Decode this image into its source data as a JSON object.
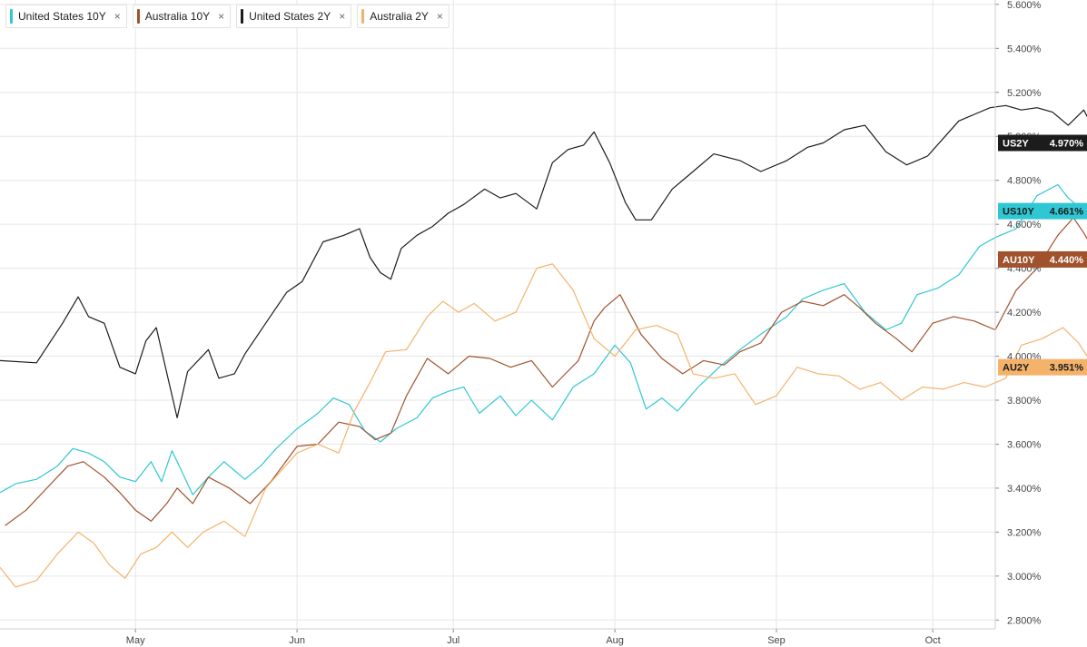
{
  "legend": [
    {
      "label": "United States 10Y",
      "color": "#2fc7d4"
    },
    {
      "label": "Australia 10Y",
      "color": "#a0522d"
    },
    {
      "label": "United States 2Y",
      "color": "#1c1c1c"
    },
    {
      "label": "Australia 2Y",
      "color": "#f5b26b"
    }
  ],
  "close_glyph": "×",
  "chart_data": {
    "type": "line",
    "x_tick_labels": [
      "May",
      "Jun",
      "Jul",
      "Aug",
      "Sep",
      "Oct"
    ],
    "y_tick_labels": [
      "2.800%",
      "3.000%",
      "3.200%",
      "3.400%",
      "3.600%",
      "3.800%",
      "4.000%",
      "4.200%",
      "4.400%",
      "4.600%",
      "4.800%",
      "5.000%",
      "5.200%",
      "5.400%",
      "5.600%"
    ],
    "ylim": [
      2.76,
      5.62
    ],
    "grid": true,
    "x_range": [
      "Apr 05",
      "Oct 13"
    ],
    "series": [
      {
        "name": "United States 2Y",
        "end_label": "US2Y",
        "end_value": "4.970%",
        "color": "#1c1c1c",
        "text_color": "#ffffff",
        "points": [
          [
            "Apr 05",
            3.98
          ],
          [
            "Apr 12",
            3.97
          ],
          [
            "Apr 17",
            4.15
          ],
          [
            "Apr 20",
            4.27
          ],
          [
            "Apr 22",
            4.18
          ],
          [
            "Apr 25",
            4.15
          ],
          [
            "Apr 28",
            3.95
          ],
          [
            "May 01",
            3.92
          ],
          [
            "May 03",
            4.07
          ],
          [
            "May 05",
            4.13
          ],
          [
            "May 09",
            3.72
          ],
          [
            "May 11",
            3.93
          ],
          [
            "May 15",
            4.03
          ],
          [
            "May 17",
            3.9
          ],
          [
            "May 20",
            3.92
          ],
          [
            "May 22",
            4.01
          ],
          [
            "May 26",
            4.15
          ],
          [
            "May 30",
            4.29
          ],
          [
            "Jun 02",
            4.34
          ],
          [
            "Jun 06",
            4.52
          ],
          [
            "Jun 10",
            4.55
          ],
          [
            "Jun 13",
            4.58
          ],
          [
            "Jun 15",
            4.45
          ],
          [
            "Jun 17",
            4.38
          ],
          [
            "Jun 19",
            4.35
          ],
          [
            "Jun 21",
            4.49
          ],
          [
            "Jun 24",
            4.55
          ],
          [
            "Jun 27",
            4.59
          ],
          [
            "Jun 30",
            4.65
          ],
          [
            "Jul 03",
            4.69
          ],
          [
            "Jul 07",
            4.76
          ],
          [
            "Jul 10",
            4.72
          ],
          [
            "Jul 13",
            4.74
          ],
          [
            "Jul 17",
            4.67
          ],
          [
            "Jul 20",
            4.88
          ],
          [
            "Jul 23",
            4.94
          ],
          [
            "Jul 26",
            4.96
          ],
          [
            "Jul 28",
            5.02
          ],
          [
            "Jul 31",
            4.88
          ],
          [
            "Aug 03",
            4.7
          ],
          [
            "Aug 05",
            4.62
          ],
          [
            "Aug 08",
            4.62
          ],
          [
            "Aug 12",
            4.76
          ],
          [
            "Aug 16",
            4.84
          ],
          [
            "Aug 20",
            4.92
          ],
          [
            "Aug 25",
            4.89
          ],
          [
            "Aug 29",
            4.84
          ],
          [
            "Sep 03",
            4.89
          ],
          [
            "Sep 07",
            4.95
          ],
          [
            "Sep 10",
            4.97
          ],
          [
            "Sep 14",
            5.03
          ],
          [
            "Sep 18",
            5.05
          ],
          [
            "Sep 22",
            4.93
          ],
          [
            "Sep 26",
            4.87
          ],
          [
            "Sep 30",
            4.91
          ],
          [
            "Oct 03",
            4.99
          ],
          [
            "Oct 06",
            5.07
          ],
          [
            "Oct 09",
            5.1
          ],
          [
            "Oct 12",
            5.13
          ],
          [
            "Oct 15",
            5.14
          ],
          [
            "Oct 18",
            5.12
          ],
          [
            "Oct 21",
            5.13
          ],
          [
            "Oct 24",
            5.11
          ],
          [
            "Oct 27",
            5.05
          ],
          [
            "Oct 30",
            5.12
          ],
          [
            "Nov 02",
            4.98
          ],
          [
            "Nov 05",
            4.97
          ]
        ]
      },
      {
        "name": "United States 10Y",
        "end_label": "US10Y",
        "end_value": "4.661%",
        "color": "#2fc7d4",
        "text_color": "#1c1c1c",
        "points": [
          [
            "Apr 05",
            3.38
          ],
          [
            "Apr 08",
            3.42
          ],
          [
            "Apr 12",
            3.44
          ],
          [
            "Apr 16",
            3.5
          ],
          [
            "Apr 19",
            3.58
          ],
          [
            "Apr 22",
            3.56
          ],
          [
            "Apr 25",
            3.52
          ],
          [
            "Apr 28",
            3.45
          ],
          [
            "May 01",
            3.43
          ],
          [
            "May 04",
            3.52
          ],
          [
            "May 06",
            3.43
          ],
          [
            "May 08",
            3.57
          ],
          [
            "May 12",
            3.37
          ],
          [
            "May 15",
            3.45
          ],
          [
            "May 18",
            3.52
          ],
          [
            "May 22",
            3.44
          ],
          [
            "May 25",
            3.5
          ],
          [
            "May 28",
            3.58
          ],
          [
            "Jun 01",
            3.67
          ],
          [
            "Jun 05",
            3.74
          ],
          [
            "Jun 08",
            3.81
          ],
          [
            "Jun 11",
            3.78
          ],
          [
            "Jun 14",
            3.66
          ],
          [
            "Jun 17",
            3.61
          ],
          [
            "Jun 20",
            3.67
          ],
          [
            "Jun 24",
            3.72
          ],
          [
            "Jun 27",
            3.81
          ],
          [
            "Jun 30",
            3.84
          ],
          [
            "Jul 03",
            3.86
          ],
          [
            "Jul 06",
            3.74
          ],
          [
            "Jul 10",
            3.82
          ],
          [
            "Jul 13",
            3.73
          ],
          [
            "Jul 16",
            3.8
          ],
          [
            "Jul 20",
            3.71
          ],
          [
            "Jul 24",
            3.86
          ],
          [
            "Jul 28",
            3.92
          ],
          [
            "Aug 01",
            4.05
          ],
          [
            "Aug 04",
            3.97
          ],
          [
            "Aug 07",
            3.76
          ],
          [
            "Aug 10",
            3.81
          ],
          [
            "Aug 13",
            3.75
          ],
          [
            "Aug 17",
            3.86
          ],
          [
            "Aug 21",
            3.95
          ],
          [
            "Aug 25",
            4.03
          ],
          [
            "Aug 29",
            4.1
          ],
          [
            "Sep 03",
            4.18
          ],
          [
            "Sep 06",
            4.26
          ],
          [
            "Sep 10",
            4.3
          ],
          [
            "Sep 14",
            4.33
          ],
          [
            "Sep 18",
            4.2
          ],
          [
            "Sep 22",
            4.12
          ],
          [
            "Sep 25",
            4.15
          ],
          [
            "Sep 28",
            4.28
          ],
          [
            "Oct 02",
            4.31
          ],
          [
            "Oct 06",
            4.37
          ],
          [
            "Oct 10",
            4.5
          ],
          [
            "Oct 13",
            4.54
          ],
          [
            "Oct 17",
            4.58
          ],
          [
            "Oct 21",
            4.73
          ],
          [
            "Oct 25",
            4.78
          ],
          [
            "Oct 27",
            4.72
          ],
          [
            "Oct 30",
            4.66
          ]
        ]
      },
      {
        "name": "Australia 10Y",
        "end_label": "AU10Y",
        "end_value": "4.440%",
        "color": "#a0522d",
        "text_color": "#ffffff",
        "points": [
          [
            "Apr 06",
            3.23
          ],
          [
            "Apr 10",
            3.3
          ],
          [
            "Apr 14",
            3.4
          ],
          [
            "Apr 18",
            3.5
          ],
          [
            "Apr 21",
            3.52
          ],
          [
            "Apr 25",
            3.45
          ],
          [
            "Apr 28",
            3.38
          ],
          [
            "May 01",
            3.3
          ],
          [
            "May 04",
            3.25
          ],
          [
            "May 07",
            3.33
          ],
          [
            "May 09",
            3.4
          ],
          [
            "May 12",
            3.33
          ],
          [
            "May 15",
            3.45
          ],
          [
            "May 19",
            3.4
          ],
          [
            "May 23",
            3.33
          ],
          [
            "May 27",
            3.43
          ],
          [
            "Jun 01",
            3.59
          ],
          [
            "Jun 05",
            3.6
          ],
          [
            "Jun 09",
            3.7
          ],
          [
            "Jun 13",
            3.68
          ],
          [
            "Jun 16",
            3.62
          ],
          [
            "Jun 19",
            3.65
          ],
          [
            "Jun 22",
            3.82
          ],
          [
            "Jun 26",
            3.99
          ],
          [
            "Jun 30",
            3.92
          ],
          [
            "Jul 04",
            4.0
          ],
          [
            "Jul 08",
            3.99
          ],
          [
            "Jul 12",
            3.95
          ],
          [
            "Jul 16",
            3.98
          ],
          [
            "Jul 20",
            3.86
          ],
          [
            "Jul 25",
            3.98
          ],
          [
            "Jul 28",
            4.16
          ],
          [
            "Jul 30",
            4.22
          ],
          [
            "Aug 02",
            4.28
          ],
          [
            "Aug 06",
            4.1
          ],
          [
            "Aug 10",
            3.99
          ],
          [
            "Aug 14",
            3.92
          ],
          [
            "Aug 18",
            3.98
          ],
          [
            "Aug 22",
            3.96
          ],
          [
            "Aug 25",
            4.02
          ],
          [
            "Aug 29",
            4.06
          ],
          [
            "Sep 02",
            4.2
          ],
          [
            "Sep 06",
            4.25
          ],
          [
            "Sep 10",
            4.23
          ],
          [
            "Sep 14",
            4.28
          ],
          [
            "Sep 17",
            4.22
          ],
          [
            "Sep 20",
            4.15
          ],
          [
            "Sep 24",
            4.08
          ],
          [
            "Sep 27",
            4.02
          ],
          [
            "Oct 01",
            4.15
          ],
          [
            "Oct 05",
            4.18
          ],
          [
            "Oct 09",
            4.16
          ],
          [
            "Oct 13",
            4.12
          ],
          [
            "Oct 17",
            4.3
          ],
          [
            "Oct 21",
            4.4
          ],
          [
            "Oct 25",
            4.55
          ],
          [
            "Oct 28",
            4.63
          ],
          [
            "Oct 30",
            4.56
          ],
          [
            "Nov 02",
            4.44
          ]
        ]
      },
      {
        "name": "Australia 2Y",
        "end_label": "AU2Y",
        "end_value": "3.951%",
        "color": "#f5b26b",
        "text_color": "#1c1c1c",
        "points": [
          [
            "Apr 05",
            3.04
          ],
          [
            "Apr 08",
            2.95
          ],
          [
            "Apr 12",
            2.98
          ],
          [
            "Apr 16",
            3.1
          ],
          [
            "Apr 20",
            3.2
          ],
          [
            "Apr 23",
            3.15
          ],
          [
            "Apr 26",
            3.05
          ],
          [
            "Apr 29",
            2.99
          ],
          [
            "May 02",
            3.1
          ],
          [
            "May 05",
            3.13
          ],
          [
            "May 08",
            3.2
          ],
          [
            "May 11",
            3.13
          ],
          [
            "May 14",
            3.2
          ],
          [
            "May 18",
            3.25
          ],
          [
            "May 22",
            3.18
          ],
          [
            "May 26",
            3.4
          ],
          [
            "Jun 01",
            3.56
          ],
          [
            "Jun 05",
            3.6
          ],
          [
            "Jun 09",
            3.56
          ],
          [
            "Jun 12",
            3.75
          ],
          [
            "Jun 15",
            3.88
          ],
          [
            "Jun 18",
            4.02
          ],
          [
            "Jun 22",
            4.03
          ],
          [
            "Jun 26",
            4.18
          ],
          [
            "Jun 29",
            4.25
          ],
          [
            "Jul 02",
            4.2
          ],
          [
            "Jul 05",
            4.24
          ],
          [
            "Jul 09",
            4.16
          ],
          [
            "Jul 13",
            4.2
          ],
          [
            "Jul 17",
            4.4
          ],
          [
            "Jul 20",
            4.42
          ],
          [
            "Jul 24",
            4.3
          ],
          [
            "Jul 28",
            4.08
          ],
          [
            "Aug 01",
            4.0
          ],
          [
            "Aug 05",
            4.12
          ],
          [
            "Aug 09",
            4.14
          ],
          [
            "Aug 13",
            4.1
          ],
          [
            "Aug 16",
            3.92
          ],
          [
            "Aug 20",
            3.9
          ],
          [
            "Aug 24",
            3.92
          ],
          [
            "Aug 28",
            3.78
          ],
          [
            "Sep 01",
            3.82
          ],
          [
            "Sep 05",
            3.95
          ],
          [
            "Sep 09",
            3.92
          ],
          [
            "Sep 13",
            3.91
          ],
          [
            "Sep 17",
            3.85
          ],
          [
            "Sep 21",
            3.88
          ],
          [
            "Sep 25",
            3.8
          ],
          [
            "Sep 29",
            3.86
          ],
          [
            "Oct 03",
            3.85
          ],
          [
            "Oct 07",
            3.88
          ],
          [
            "Oct 11",
            3.86
          ],
          [
            "Oct 15",
            3.9
          ],
          [
            "Oct 18",
            4.05
          ],
          [
            "Oct 22",
            4.08
          ],
          [
            "Oct 26",
            4.13
          ],
          [
            "Oct 29",
            4.06
          ],
          [
            "Nov 01",
            3.95
          ]
        ]
      }
    ]
  }
}
